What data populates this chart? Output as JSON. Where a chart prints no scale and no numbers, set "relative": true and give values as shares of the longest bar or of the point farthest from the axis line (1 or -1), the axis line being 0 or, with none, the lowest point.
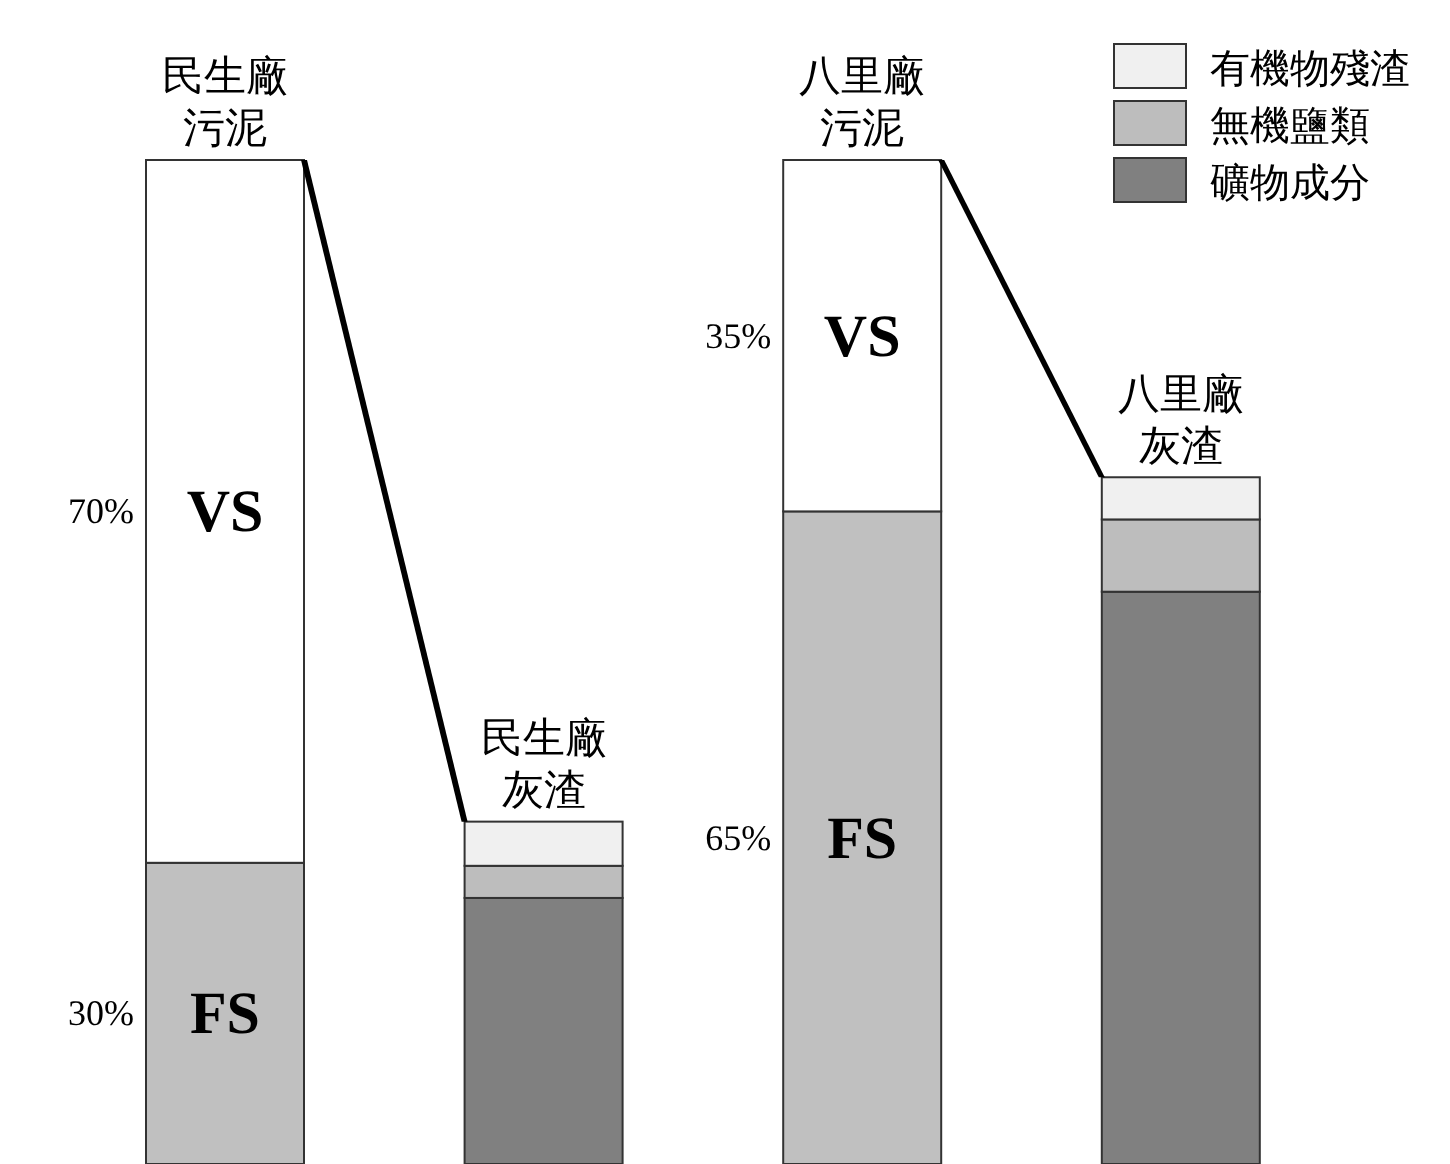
{
  "chart_data": {
    "type": "bar",
    "stacked": true,
    "relative": true,
    "legend": "top right",
    "categories": [
      "民生廠污泥",
      "民生廠灰渣",
      "八里廠污泥",
      "八里廠灰渣"
    ],
    "series": [
      {
        "name": "FS",
        "color": "#c0c0c0",
        "values": [
          0.3,
          null,
          0.65,
          null
        ]
      },
      {
        "name": "VS",
        "color": "#ffffff",
        "values": [
          0.7,
          null,
          0.35,
          null
        ]
      },
      {
        "name": "礦物成分",
        "color": "#808080",
        "values": [
          null,
          0.265,
          null,
          0.57
        ]
      },
      {
        "name": "無機鹽類",
        "color": "#bdbdbd",
        "values": [
          null,
          0.032,
          null,
          0.072
        ]
      },
      {
        "name": "有機物殘渣",
        "color": "#f0f0f0",
        "values": [
          null,
          0.044,
          null,
          0.042
        ]
      }
    ],
    "annotations": [
      "30%",
      "65%",
      "70%",
      "35%"
    ]
  }
}
